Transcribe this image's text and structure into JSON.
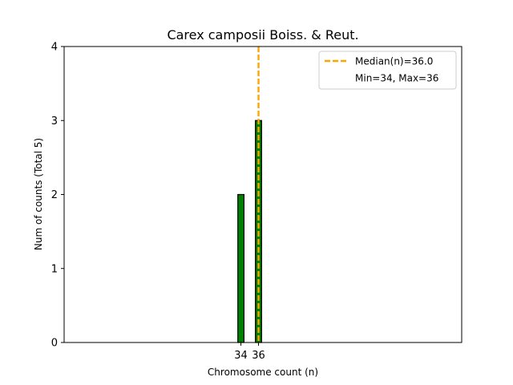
{
  "chart_data": {
    "type": "bar",
    "title": "Carex camposii Boiss. & Reut.",
    "xlabel": "Chromosome count (n)",
    "ylabel": "Num of counts     (Total 5)",
    "x_ticks": [
      34,
      36
    ],
    "x_tick_labels": [
      "34",
      "36"
    ],
    "xlim": [
      13.9,
      59.1
    ],
    "ylim": [
      0,
      4
    ],
    "y_ticks": [
      0,
      1,
      2,
      3,
      4
    ],
    "y_tick_labels": [
      "0",
      "1",
      "2",
      "3",
      "4"
    ],
    "bars": [
      {
        "x": 34,
        "value": 2
      },
      {
        "x": 36,
        "value": 3
      }
    ],
    "bar_width": 0.7,
    "bar_color": "#008000",
    "bar_edge_color": "#000000",
    "median": 36.0,
    "median_color": "#FFA500",
    "legend": {
      "placement": "top-right",
      "entries": [
        "Median(n)=36.0",
        "Min=34, Max=36"
      ]
    },
    "grid": false
  }
}
